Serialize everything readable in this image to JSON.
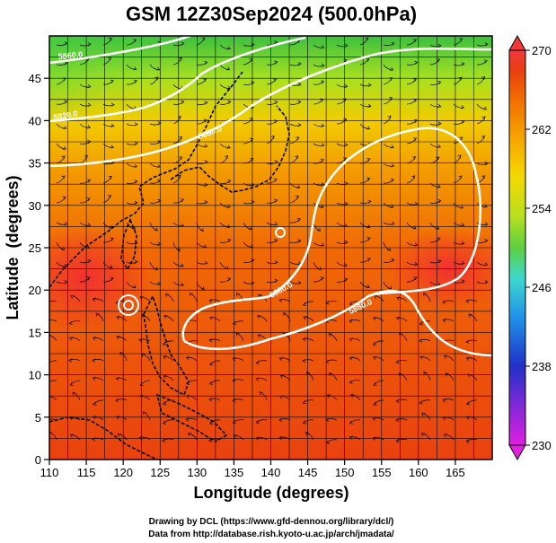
{
  "chart_data": {
    "type": "heatmap",
    "title": "GSM 12Z30Sep2024 (500.0hPa)",
    "xlabel": "Longitude (degrees)",
    "ylabel": "Latitude  (degrees)",
    "xlim": [
      110,
      170
    ],
    "ylim": [
      0,
      50
    ],
    "x_ticks": [
      110,
      115,
      120,
      125,
      130,
      135,
      140,
      145,
      150,
      155,
      160,
      165
    ],
    "y_ticks": [
      0,
      5,
      10,
      15,
      20,
      25,
      30,
      35,
      40,
      45
    ],
    "colorbar": {
      "ticks": [
        270,
        262,
        254,
        246,
        238,
        230
      ],
      "range": [
        230,
        270
      ],
      "colors": [
        "#e020e0",
        "#8a28d8",
        "#2030c8",
        "#1f8fe8",
        "#3cd8d0",
        "#5cd040",
        "#b8e020",
        "#f5d800",
        "#f6a400",
        "#f26c00",
        "#e83d12",
        "#f03a3a"
      ]
    },
    "contour_labels": [
      {
        "text": "5820.0",
        "lon": 114.5,
        "lat": 42.5
      },
      {
        "text": "5880.0",
        "lon": 120.5,
        "lat": 38.5
      },
      {
        "text": "5860.0",
        "lon": 115.0,
        "lat": 47.8
      },
      {
        "text": "5880.0",
        "lon": 142.5,
        "lat": 21.0
      },
      {
        "text": "5880.0",
        "lon": 153.0,
        "lat": 20.0
      }
    ],
    "vortex_centers": [
      {
        "lon": 120.5,
        "lat": 20.5
      },
      {
        "lon": 141.0,
        "lat": 29.0
      }
    ]
  },
  "credits": {
    "line1": "Drawing by DCL (https://www.gfd-dennou.org/library/dcl/)",
    "line2": "Data from http://database.rish.kyoto-u.ac.jp/arch/jmadata/"
  }
}
